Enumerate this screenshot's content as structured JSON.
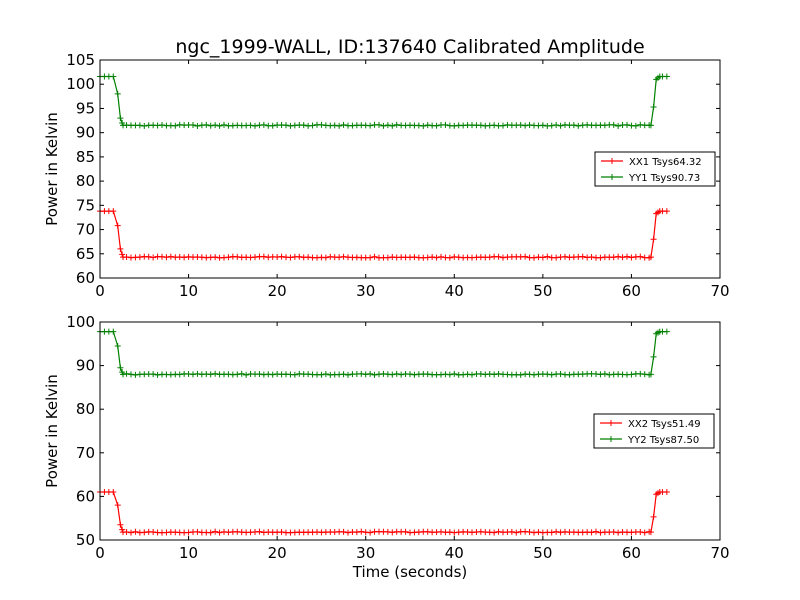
{
  "title": "ngc_1999-WALL, ID:137640 Calibrated Amplitude",
  "xlabel": "Time (seconds)",
  "ylabel": "Power in Kelvin",
  "chart_data": [
    {
      "type": "line",
      "title": "ngc_1999-WALL, ID:137640 Calibrated Amplitude",
      "xlabel": "",
      "ylabel": "Power in Kelvin",
      "xlim": [
        0,
        70
      ],
      "ylim": [
        60,
        105
      ],
      "xticks": [
        0,
        10,
        20,
        30,
        40,
        50,
        60,
        70
      ],
      "yticks": [
        60,
        65,
        70,
        75,
        80,
        85,
        90,
        95,
        100,
        105
      ],
      "legend_position": "center-right",
      "grid": false,
      "series": [
        {
          "name": "XX1 Tsys64.32",
          "color": "#ff0000",
          "high": 73.8,
          "low": 64.3,
          "points": [
            [
              0,
              73.8
            ],
            [
              0.5,
              73.8
            ],
            [
              1,
              73.8
            ],
            [
              1.5,
              73.8
            ],
            [
              2,
              70.8
            ],
            [
              2.3,
              66
            ],
            [
              2.6,
              64.3
            ],
            [
              62.2,
              64.3
            ],
            [
              62.5,
              68
            ],
            [
              62.8,
              73.3
            ],
            [
              63.2,
              73.8
            ],
            [
              64,
              73.8
            ]
          ]
        },
        {
          "name": "YY1 Tsys90.73",
          "color": "#008000",
          "high": 101.6,
          "low": 91.5,
          "points": [
            [
              0,
              101.6
            ],
            [
              0.5,
              101.6
            ],
            [
              1,
              101.6
            ],
            [
              1.5,
              101.6
            ],
            [
              2,
              98
            ],
            [
              2.3,
              93
            ],
            [
              2.6,
              91.5
            ],
            [
              62.2,
              91.5
            ],
            [
              62.5,
              95.3
            ],
            [
              62.8,
              101
            ],
            [
              63.2,
              101.6
            ],
            [
              64,
              101.6
            ]
          ]
        }
      ]
    },
    {
      "type": "line",
      "title": "",
      "xlabel": "Time (seconds)",
      "ylabel": "Power in Kelvin",
      "xlim": [
        0,
        70
      ],
      "ylim": [
        50,
        100
      ],
      "xticks": [
        0,
        10,
        20,
        30,
        40,
        50,
        60,
        70
      ],
      "yticks": [
        50,
        60,
        70,
        80,
        90,
        100
      ],
      "legend_position": "center-right",
      "grid": false,
      "series": [
        {
          "name": "XX2 Tsys51.49",
          "color": "#ff0000",
          "high": 61.0,
          "low": 51.8,
          "points": [
            [
              0,
              61
            ],
            [
              0.5,
              61
            ],
            [
              1,
              61
            ],
            [
              1.5,
              61
            ],
            [
              2,
              58
            ],
            [
              2.3,
              53.5
            ],
            [
              2.6,
              51.8
            ],
            [
              62.2,
              51.8
            ],
            [
              62.5,
              55.3
            ],
            [
              62.8,
              60.5
            ],
            [
              63.2,
              61
            ],
            [
              64,
              61
            ]
          ]
        },
        {
          "name": "YY2 Tsys87.50",
          "color": "#008000",
          "high": 97.8,
          "low": 88.0,
          "points": [
            [
              0,
              97.8
            ],
            [
              0.5,
              97.8
            ],
            [
              1,
              97.8
            ],
            [
              1.5,
              97.8
            ],
            [
              2,
              94.5
            ],
            [
              2.3,
              89.5
            ],
            [
              2.6,
              88
            ],
            [
              62.2,
              88
            ],
            [
              62.5,
              92
            ],
            [
              62.8,
              97.3
            ],
            [
              63.2,
              97.8
            ],
            [
              64,
              97.8
            ]
          ]
        }
      ]
    }
  ]
}
